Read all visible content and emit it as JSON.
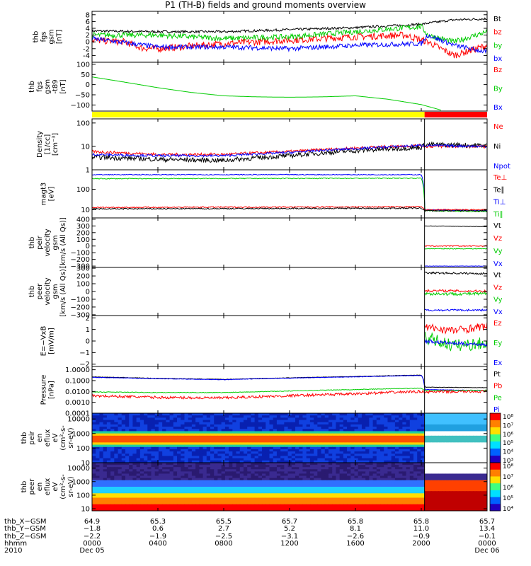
{
  "title": "P1 (TH-B) fields and ground moments overview",
  "colors": {
    "black": "#000000",
    "red": "#ff0000",
    "green": "#00cc00",
    "blue": "#0000ff",
    "yellow": "#ffff00"
  },
  "chart_data": [
    {
      "id": "fgs",
      "type": "line",
      "ylabel": [
        "thb",
        "fgs",
        "gsm",
        "[nT]"
      ],
      "ylim": [
        -6,
        9
      ],
      "yticks": [
        8,
        6,
        4,
        2,
        0,
        -2,
        -4
      ],
      "legend": [
        [
          "Bt",
          "black"
        ],
        [
          "bz",
          "red"
        ],
        [
          "by",
          "green"
        ],
        [
          "bx",
          "blue"
        ]
      ],
      "series": [
        {
          "name": "Bt",
          "color": "black",
          "noise": 0.35,
          "x": [
            0,
            4,
            8,
            12,
            16,
            20,
            20.4,
            22,
            24
          ],
          "y": [
            3.2,
            3.0,
            3.0,
            3.6,
            4.2,
            5.2,
            5.5,
            6.5,
            6.8
          ]
        },
        {
          "name": "bz",
          "color": "red",
          "noise": 1.0,
          "x": [
            0,
            2,
            3,
            4,
            8,
            12,
            16,
            19,
            20.4,
            22,
            24
          ],
          "y": [
            0.5,
            0.0,
            -1.8,
            -2.0,
            -0.5,
            0.5,
            1.5,
            2.0,
            0,
            -4,
            -1
          ]
        },
        {
          "name": "by",
          "color": "green",
          "noise": 0.8,
          "x": [
            0,
            4,
            8,
            12,
            16,
            20,
            20.4,
            22,
            24
          ],
          "y": [
            2,
            2,
            1,
            1.5,
            3,
            4.5,
            2,
            0,
            3
          ]
        },
        {
          "name": "bx",
          "color": "blue",
          "noise": 0.7,
          "x": [
            0,
            4,
            8,
            12,
            16,
            20,
            20.4,
            22,
            24
          ],
          "y": [
            1,
            -1.5,
            -1.5,
            -2,
            -1,
            -0.5,
            2,
            -1,
            -3
          ]
        }
      ]
    },
    {
      "id": "t89",
      "type": "line",
      "ylabel": [
        "thb",
        "fgs",
        "gsm",
        "-t89",
        "[nT]"
      ],
      "ylim": [
        -130,
        110
      ],
      "yticks": [
        100,
        50,
        0,
        -50,
        -100
      ],
      "yticklabels": [
        "100",
        "50",
        "0",
        "−50",
        "−100"
      ],
      "legend": [
        [
          "Bz",
          "red"
        ],
        [
          "By",
          "green"
        ],
        [
          "Bx",
          "blue"
        ]
      ],
      "series": [
        {
          "name": "By",
          "color": "green",
          "noise": 0,
          "x": [
            0,
            2,
            4,
            6,
            8,
            10,
            12,
            14,
            16,
            18,
            20,
            21.2
          ],
          "y": [
            38,
            12,
            -15,
            -38,
            -55,
            -60,
            -62,
            -60,
            -55,
            -72,
            -98,
            -125
          ]
        }
      ]
    },
    {
      "id": "density",
      "type": "line",
      "log": true,
      "ylabel": [
        "Density",
        "[1/cc]",
        "[cm⁻³]"
      ],
      "ylim": [
        1,
        150
      ],
      "yticks": [
        1,
        10,
        100
      ],
      "yticklabels": [
        "1",
        "10",
        "100"
      ],
      "legend": [
        [
          "Ne",
          "red"
        ],
        [
          "Ni",
          "black"
        ],
        [
          "Npot",
          "blue"
        ]
      ],
      "series": [
        {
          "name": "Ne",
          "color": "red",
          "noise": 0.06,
          "x": [
            0,
            4,
            8,
            12,
            16,
            20,
            20.2,
            24
          ],
          "y": [
            6,
            4.5,
            4.5,
            6,
            8.5,
            11,
            10,
            10
          ]
        },
        {
          "name": "Ni",
          "color": "black",
          "noise": 0.1,
          "x": [
            0,
            4,
            8,
            12,
            16,
            20,
            20.2,
            24
          ],
          "y": [
            3.5,
            2.8,
            2.5,
            4,
            6.5,
            9,
            12,
            11
          ]
        },
        {
          "name": "Npot",
          "color": "blue",
          "noise": 0.05,
          "x": [
            0,
            4,
            8,
            12,
            16,
            20,
            20.2,
            24
          ],
          "y": [
            4.5,
            4,
            4,
            5.5,
            8,
            11,
            11,
            10
          ]
        }
      ]
    },
    {
      "id": "magt3",
      "type": "line",
      "log": true,
      "ylabel": [
        "magt3",
        "[eV]"
      ],
      "ylim": [
        4,
        900
      ],
      "yticks": [
        10,
        100
      ],
      "yticklabels": [
        "10",
        "100"
      ],
      "legend": [
        [
          "Te⊥",
          "red"
        ],
        [
          "Te∥",
          "black"
        ],
        [
          "Ti⊥",
          "blue"
        ],
        [
          "Ti∥",
          "green"
        ]
      ],
      "series": [
        {
          "name": "Ti⊥",
          "color": "blue",
          "noise": 0.02,
          "x": [
            0,
            20,
            20.2,
            24
          ],
          "y": [
            520,
            520,
            10,
            9
          ]
        },
        {
          "name": "Ti∥",
          "color": "green",
          "noise": 0.02,
          "x": [
            0,
            20,
            20.2,
            24
          ],
          "y": [
            330,
            350,
            9,
            8
          ]
        },
        {
          "name": "Te⊥",
          "color": "red",
          "noise": 0.03,
          "x": [
            0,
            20,
            20.2,
            24
          ],
          "y": [
            13,
            14,
            10,
            10
          ]
        },
        {
          "name": "Te∥",
          "color": "black",
          "noise": 0.03,
          "x": [
            0,
            20,
            20.2,
            24
          ],
          "y": [
            11,
            12,
            9,
            9
          ]
        }
      ]
    },
    {
      "id": "peirv",
      "type": "line",
      "ylabel": [
        "thb",
        "peir",
        "velocity",
        "gsm",
        "[km/s (All Qs)]"
      ],
      "ylim": [
        -320,
        420
      ],
      "yticks": [
        400,
        300,
        200,
        100,
        0,
        -100,
        -200,
        -300
      ],
      "yticklabels": [
        "400",
        "300",
        "200",
        "100",
        "0",
        "−100",
        "−200",
        "−300"
      ],
      "legend": [
        [
          "Vt",
          "black"
        ],
        [
          "Vz",
          "red"
        ],
        [
          "Vy",
          "green"
        ],
        [
          "Vx",
          "blue"
        ]
      ],
      "series": [
        {
          "name": "Vt",
          "color": "black",
          "noise": 3,
          "x": [
            20.2,
            24
          ],
          "y": [
            300,
            290
          ]
        },
        {
          "name": "Vz",
          "color": "red",
          "noise": 8,
          "x": [
            20.2,
            24
          ],
          "y": [
            0,
            0
          ]
        },
        {
          "name": "Vy",
          "color": "green",
          "noise": 6,
          "x": [
            20.2,
            24
          ],
          "y": [
            -40,
            -40
          ]
        },
        {
          "name": "Vx",
          "color": "blue",
          "noise": 3,
          "x": [
            20.2,
            24
          ],
          "y": [
            -300,
            -300
          ]
        }
      ]
    },
    {
      "id": "peerv",
      "type": "line",
      "ylabel": [
        "thb",
        "peer",
        "velocity",
        "gsm",
        "[km/s (All Qs)]"
      ],
      "ylim": [
        -310,
        310
      ],
      "yticks": [
        300,
        200,
        100,
        0,
        -100,
        -200,
        -300
      ],
      "yticklabels": [
        "300",
        "200",
        "100",
        "0",
        "−100",
        "−200",
        "−300"
      ],
      "legend": [
        [
          "Vt",
          "black"
        ],
        [
          "Vz",
          "red"
        ],
        [
          "Vy",
          "green"
        ],
        [
          "Vx",
          "blue"
        ]
      ],
      "series": [
        {
          "name": "Vt",
          "color": "black",
          "noise": 12,
          "x": [
            20.2,
            24
          ],
          "y": [
            240,
            230
          ]
        },
        {
          "name": "Vz",
          "color": "red",
          "noise": 15,
          "x": [
            20.2,
            24
          ],
          "y": [
            10,
            5
          ]
        },
        {
          "name": "Vy",
          "color": "green",
          "noise": 20,
          "x": [
            20.2,
            24
          ],
          "y": [
            -30,
            -30
          ]
        },
        {
          "name": "Vx",
          "color": "blue",
          "noise": 12,
          "x": [
            20.2,
            24
          ],
          "y": [
            -240,
            -240
          ]
        }
      ]
    },
    {
      "id": "efield",
      "type": "line",
      "ylabel": [
        "E=−VxB",
        "[mV/m]"
      ],
      "ylim": [
        -2.2,
        2.2
      ],
      "yticks": [
        2,
        1,
        0,
        -1,
        -2
      ],
      "yticklabels": [
        "2",
        "1",
        "0",
        "−1",
        "−2"
      ],
      "legend": [
        [
          "Ez",
          "red"
        ],
        [
          "Ey",
          "green"
        ],
        [
          "Ex",
          "blue"
        ]
      ],
      "series": [
        {
          "name": "Ez",
          "color": "red",
          "noise": 0.35,
          "x": [
            20.2,
            22,
            24
          ],
          "y": [
            1.2,
            0.9,
            1.3
          ]
        },
        {
          "name": "Ey",
          "color": "green",
          "noise": 0.55,
          "x": [
            20.2,
            22,
            24
          ],
          "y": [
            0.3,
            -0.4,
            -0.2
          ]
        },
        {
          "name": "Ex",
          "color": "blue",
          "noise": 0.15,
          "x": [
            20.2,
            22,
            24
          ],
          "y": [
            0.0,
            -0.2,
            -0.3
          ]
        }
      ]
    },
    {
      "id": "pressure",
      "type": "line",
      "log": true,
      "ylabel": [
        "Pressure",
        "[nPa]"
      ],
      "ylim": [
        0.0001,
        2.0
      ],
      "yticks": [
        1,
        0.1,
        0.01,
        0.001,
        0.0001
      ],
      "yticklabels": [
        "1.0000",
        "0.1000",
        "0.0100",
        "0.0010",
        "0.0001"
      ],
      "legend": [
        [
          "Pt",
          "black"
        ],
        [
          "Pb",
          "red"
        ],
        [
          "Pe",
          "green"
        ],
        [
          "Pi",
          "blue"
        ]
      ],
      "series": [
        {
          "name": "Pt",
          "color": "black",
          "noise": 0.02,
          "x": [
            0,
            4,
            8,
            12,
            16,
            20,
            20.2,
            24
          ],
          "y": [
            0.22,
            0.16,
            0.13,
            0.18,
            0.24,
            0.32,
            0.025,
            0.022
          ]
        },
        {
          "name": "Pi",
          "color": "blue",
          "noise": 0.02,
          "x": [
            0,
            4,
            8,
            12,
            16,
            20,
            20.2,
            24
          ],
          "y": [
            0.2,
            0.15,
            0.12,
            0.17,
            0.22,
            0.3,
            0.015,
            0.012
          ]
        },
        {
          "name": "Pe",
          "color": "green",
          "noise": 0.03,
          "x": [
            0,
            4,
            8,
            12,
            16,
            20,
            20.2,
            24
          ],
          "y": [
            0.009,
            0.008,
            0.008,
            0.011,
            0.015,
            0.02,
            0.012,
            0.013
          ]
        },
        {
          "name": "Pb",
          "color": "red",
          "noise": 0.12,
          "x": [
            0,
            4,
            8,
            12,
            16,
            20,
            20.2,
            24
          ],
          "y": [
            0.004,
            0.0028,
            0.0025,
            0.004,
            0.006,
            0.01,
            0.009,
            0.01
          ]
        }
      ]
    },
    {
      "id": "peir_flux",
      "type": "heatmap",
      "log": true,
      "ylabel": [
        "thb",
        "peir",
        "en",
        "eflux",
        "eV",
        "(cm²-s-",
        "sr-eV)"
      ],
      "ylim": [
        10,
        25000
      ],
      "yticks": [
        10,
        100,
        1000,
        10000
      ],
      "yticklabels": [
        "10",
        "100",
        "1000",
        "10000"
      ],
      "colorbar_labels": [
        "10⁸",
        "10⁷",
        "10⁶",
        "10⁵",
        "10⁴",
        "10³"
      ]
    },
    {
      "id": "peer_flux",
      "type": "heatmap",
      "log": true,
      "ylabel": [
        "thb",
        "peer",
        "en",
        "eflux",
        "eV",
        "(cm²-s-",
        "sr-eV)"
      ],
      "ylim": [
        7,
        25000
      ],
      "yticks": [
        10,
        100,
        1000,
        10000
      ],
      "yticklabels": [
        "10",
        "100",
        "1000",
        "10000"
      ],
      "colorbar_labels": [
        "10⁸",
        "10⁷",
        "10⁶",
        "10⁵",
        "10⁴"
      ]
    }
  ],
  "xaxis": {
    "row_labels": [
      "thb_X−GSM",
      "thb_Y−GSM",
      "thb_Z−GSM",
      "hhmm",
      "2010"
    ],
    "columns": [
      {
        "x": 0,
        "vals": [
          "64.9",
          "−1.8",
          "−2.2",
          "0000",
          "Dec 05"
        ]
      },
      {
        "x": 4,
        "vals": [
          "65.3",
          "0.6",
          "−1.9",
          "0400",
          ""
        ]
      },
      {
        "x": 8,
        "vals": [
          "65.5",
          "2.7",
          "−2.5",
          "0800",
          ""
        ]
      },
      {
        "x": 12,
        "vals": [
          "65.7",
          "5.2",
          "−3.1",
          "1200",
          ""
        ]
      },
      {
        "x": 16,
        "vals": [
          "65.8",
          "8.1",
          "−2.6",
          "1600",
          ""
        ]
      },
      {
        "x": 20,
        "vals": [
          "65.8",
          "11.0",
          "−0.9",
          "2000",
          ""
        ]
      },
      {
        "x": 24,
        "vals": [
          "65.7",
          "13.4",
          "−0.1",
          "0000",
          "Dec 06"
        ]
      }
    ]
  }
}
